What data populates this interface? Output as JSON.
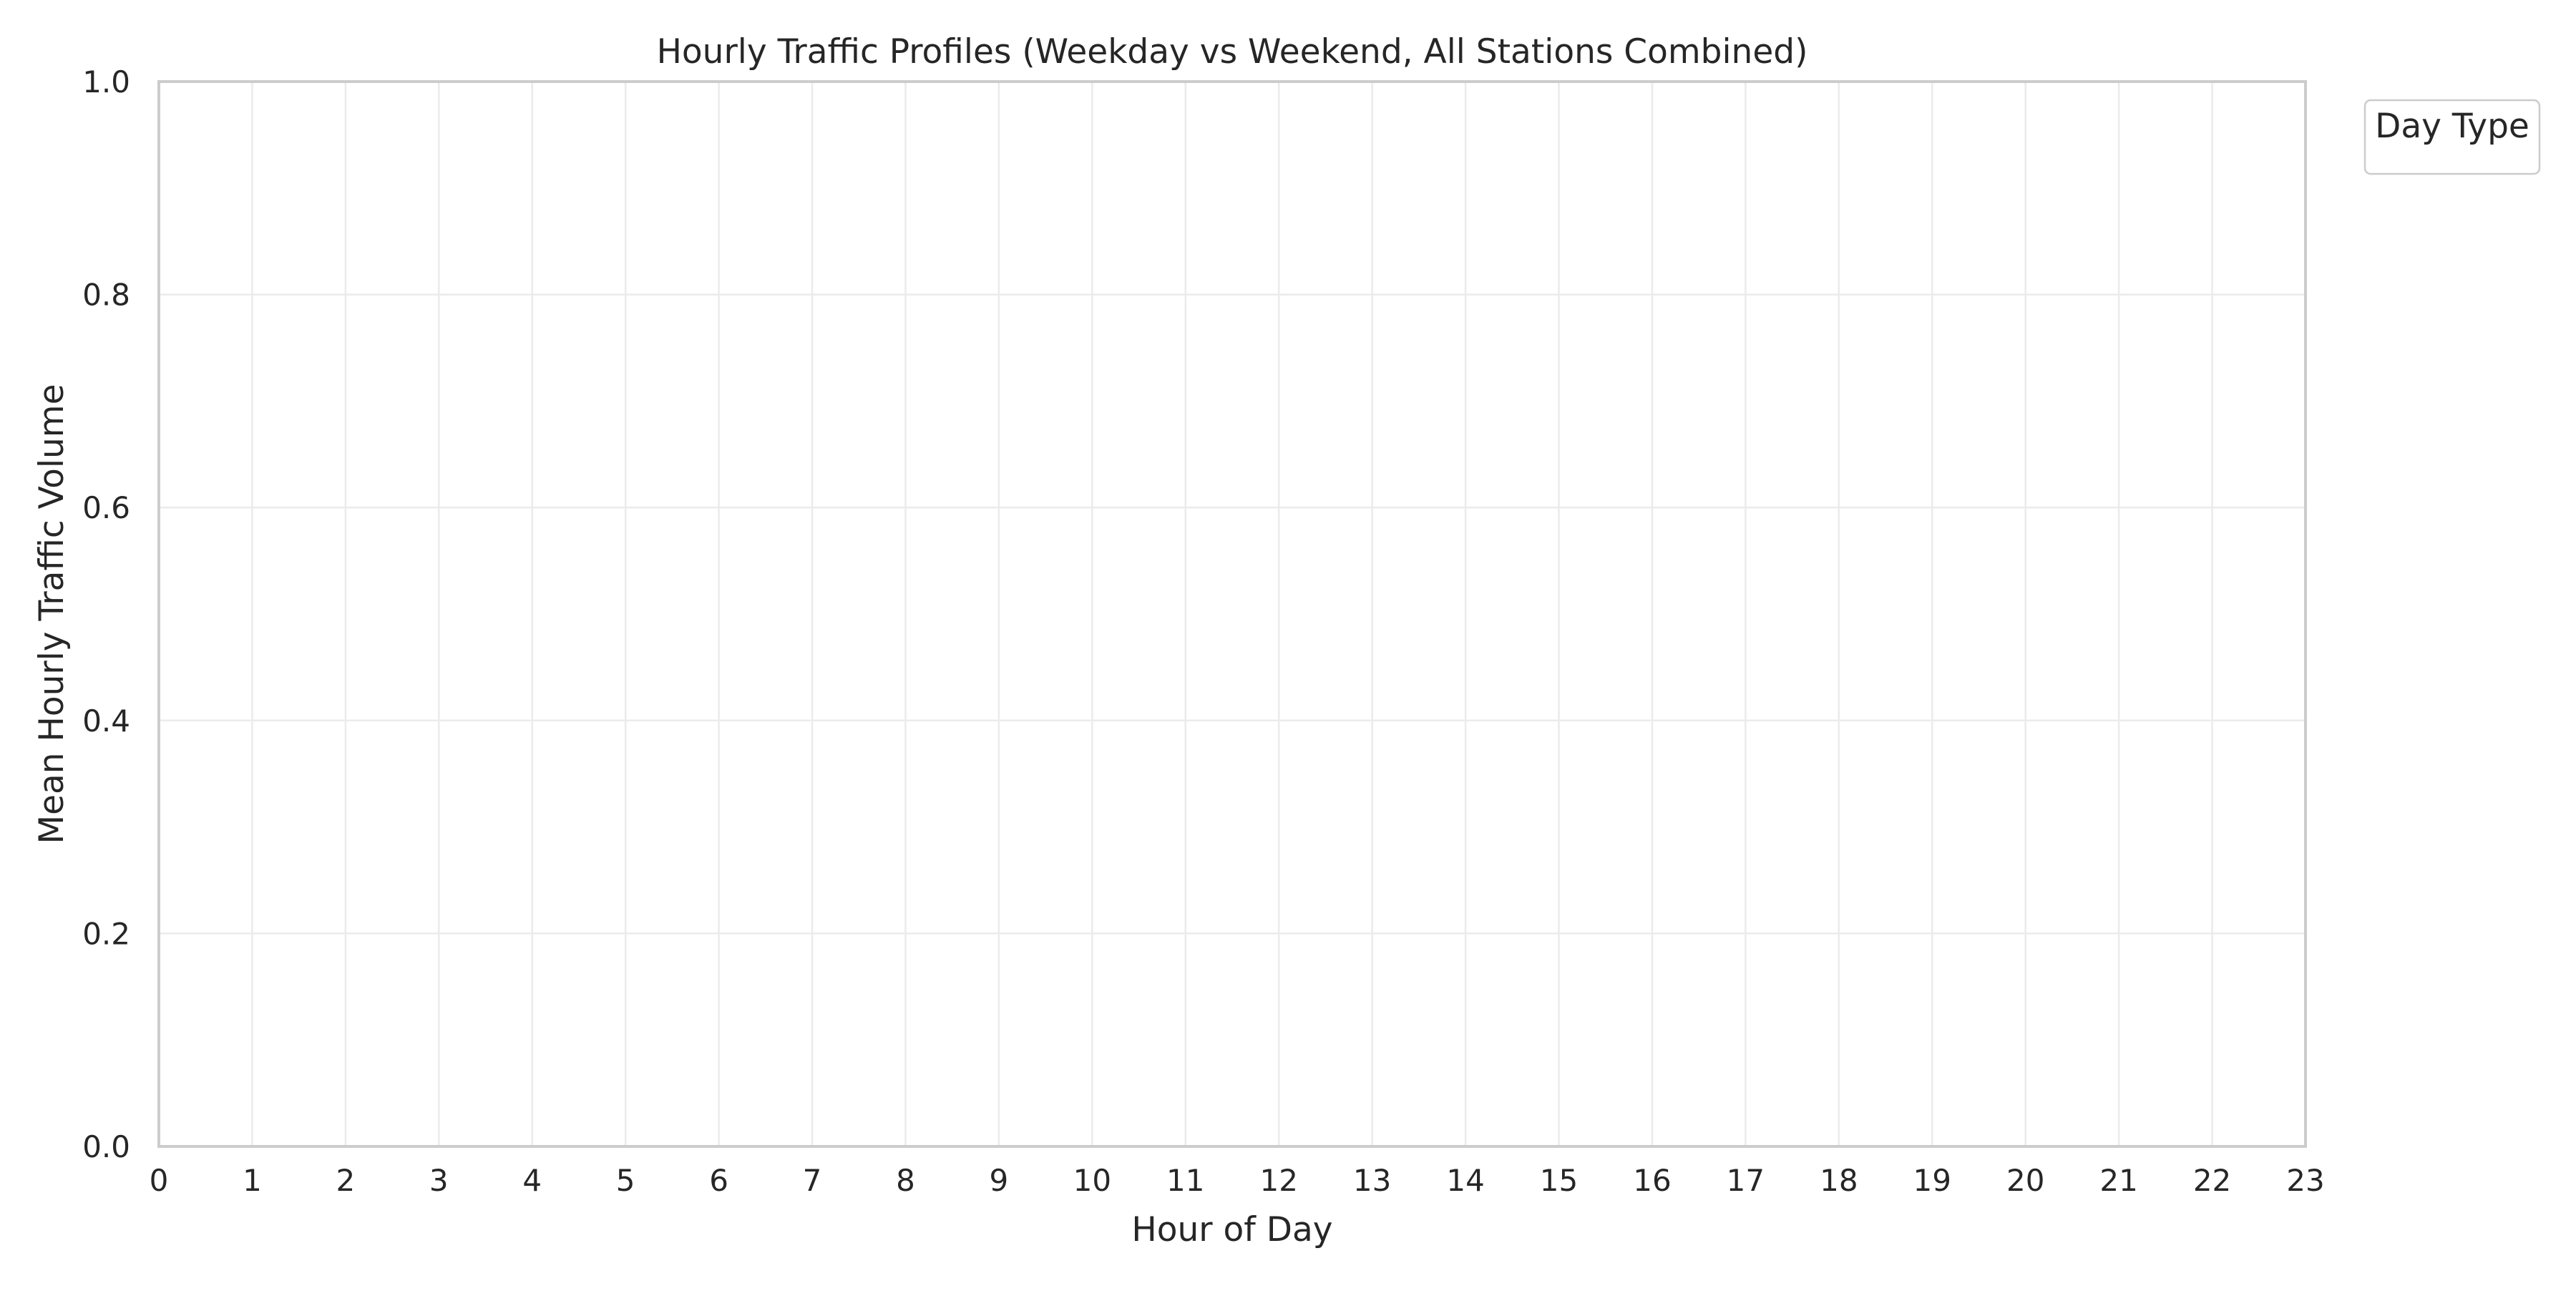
{
  "chart_data": {
    "type": "line",
    "title": "Hourly Traffic Profiles (Weekday vs Weekend, All Stations Combined)",
    "xlabel": "Hour of Day",
    "ylabel": "Mean Hourly Traffic Volume",
    "x_ticks": [
      "0",
      "1",
      "2",
      "3",
      "4",
      "5",
      "6",
      "7",
      "8",
      "9",
      "10",
      "11",
      "12",
      "13",
      "14",
      "15",
      "16",
      "17",
      "18",
      "19",
      "20",
      "21",
      "22",
      "23"
    ],
    "y_ticks": [
      "0.0",
      "0.2",
      "0.4",
      "0.6",
      "0.8",
      "1.0"
    ],
    "xlim": [
      0,
      23
    ],
    "ylim": [
      0,
      1
    ],
    "grid": true,
    "legend_title": "Day Type",
    "legend_placement": "outside-top-right",
    "series": [],
    "colors": {
      "background": "#ffffff",
      "grid": "#ebebeb",
      "spine": "#cccccc",
      "text": "#262626",
      "legend_border": "#cccccc"
    }
  }
}
